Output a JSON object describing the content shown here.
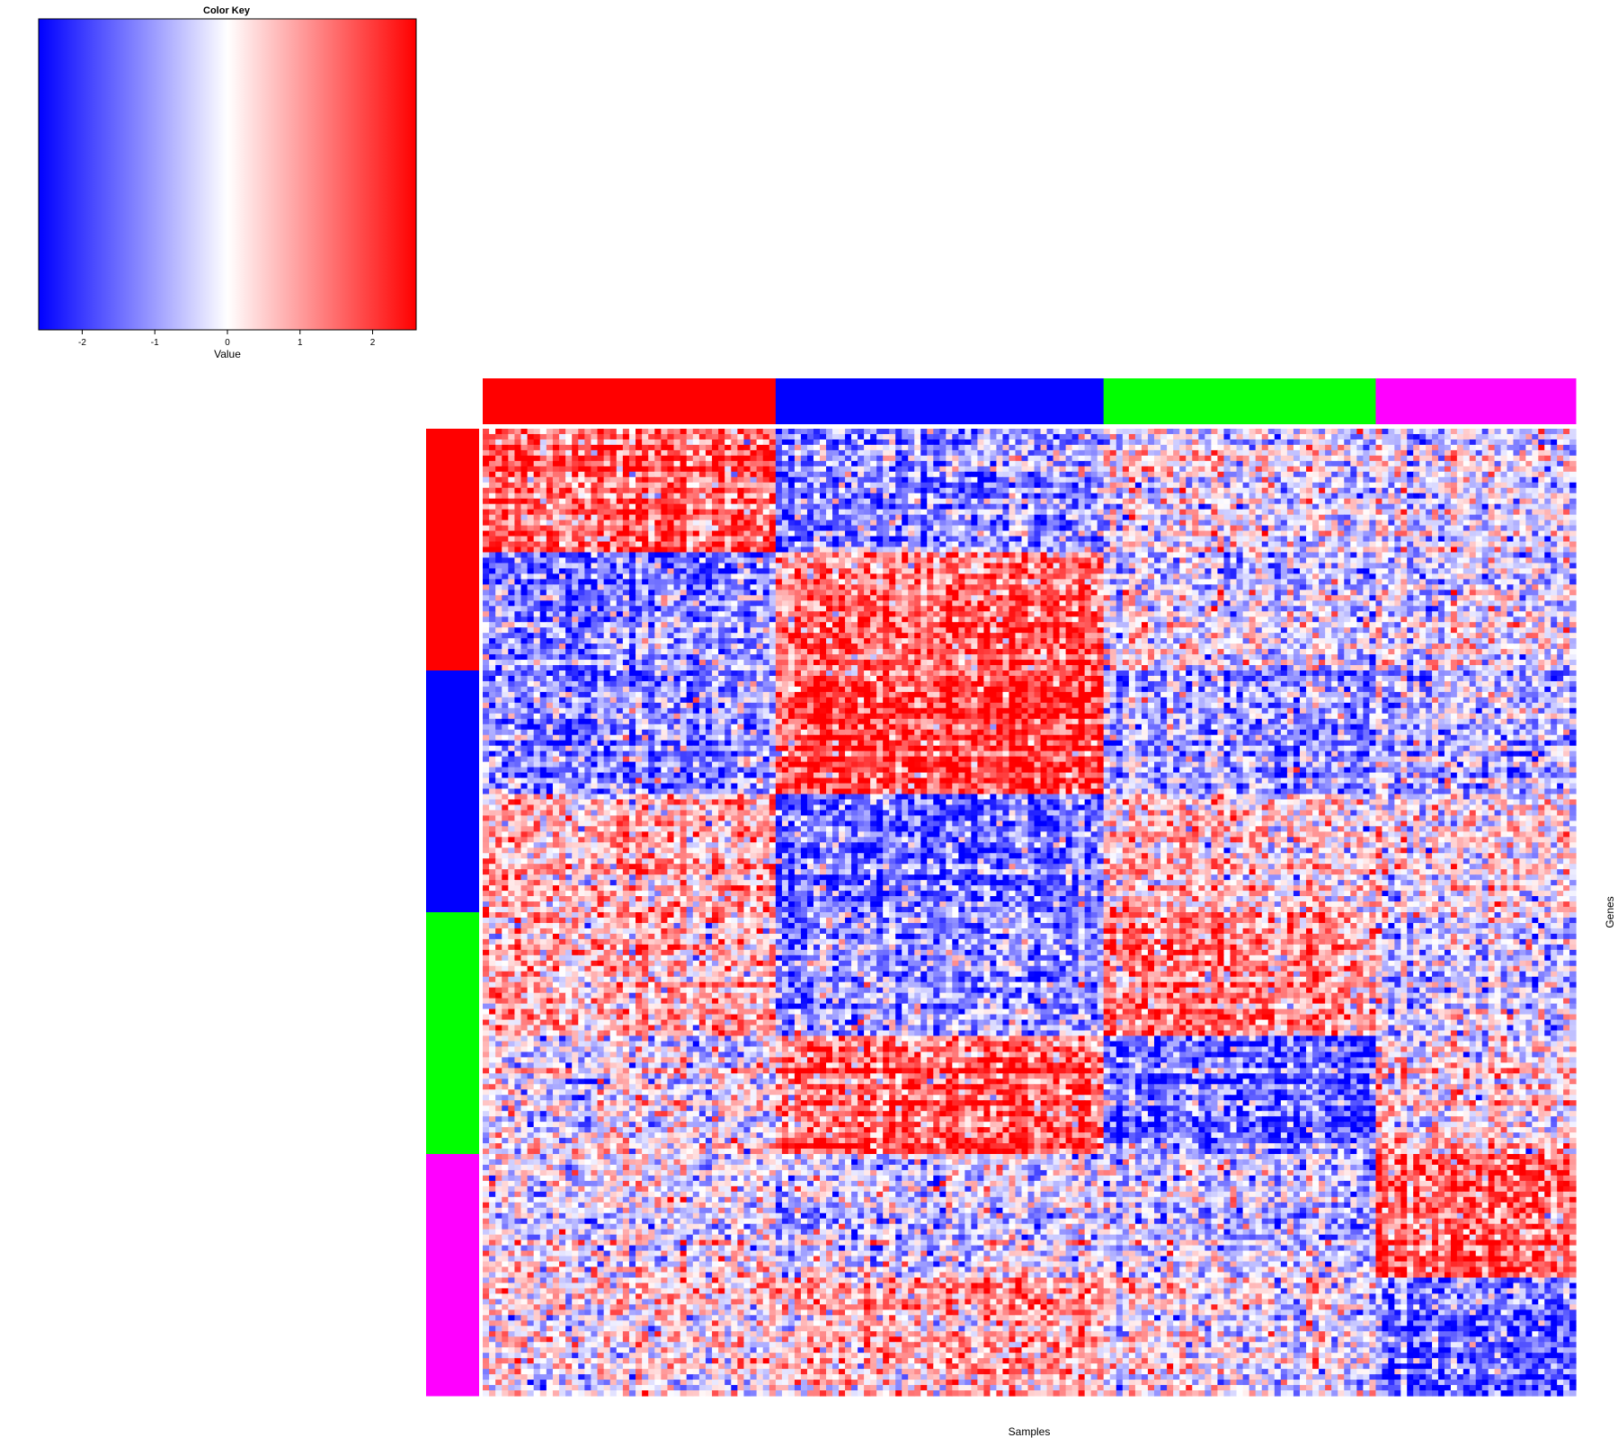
{
  "chart_data": {
    "type": "heatmap",
    "color_key": {
      "title": "Color Key",
      "xlabel": "Value",
      "range": [
        -2.6,
        2.6
      ],
      "ticks": [
        -2,
        -1,
        0,
        1,
        2
      ],
      "tick_labels": [
        "-2",
        "-1",
        "0",
        "1",
        "2"
      ],
      "low_color": "#0000ff",
      "mid_color": "#ffffff",
      "high_color": "#ff0000"
    },
    "xlabel": "Samples",
    "ylabel": "Genes",
    "column_groups": [
      {
        "color": "#ff0000",
        "share": 0.268
      },
      {
        "color": "#0000ff",
        "share": 0.3
      },
      {
        "color": "#00ff00",
        "share": 0.249
      },
      {
        "color": "#ff00ff",
        "share": 0.183
      }
    ],
    "row_groups": [
      {
        "color": "#ff0000",
        "share": 0.25
      },
      {
        "color": "#0000ff",
        "share": 0.25
      },
      {
        "color": "#00ff00",
        "share": 0.25
      },
      {
        "color": "#ff00ff",
        "share": 0.25
      }
    ],
    "row_blocks": 8,
    "block_means": [
      [
        1.5,
        -1.2,
        -0.1,
        -0.3
      ],
      [
        -1.3,
        1.5,
        -0.3,
        -0.3
      ],
      [
        -1.3,
        1.9,
        -1.0,
        -0.8
      ],
      [
        0.8,
        -1.4,
        0.6,
        0.2
      ],
      [
        0.6,
        -1.1,
        1.2,
        -0.5
      ],
      [
        -0.2,
        1.5,
        -1.5,
        0.2
      ],
      [
        -0.2,
        -0.5,
        -0.5,
        1.6
      ],
      [
        0.2,
        0.8,
        0.1,
        -1.5
      ]
    ]
  }
}
